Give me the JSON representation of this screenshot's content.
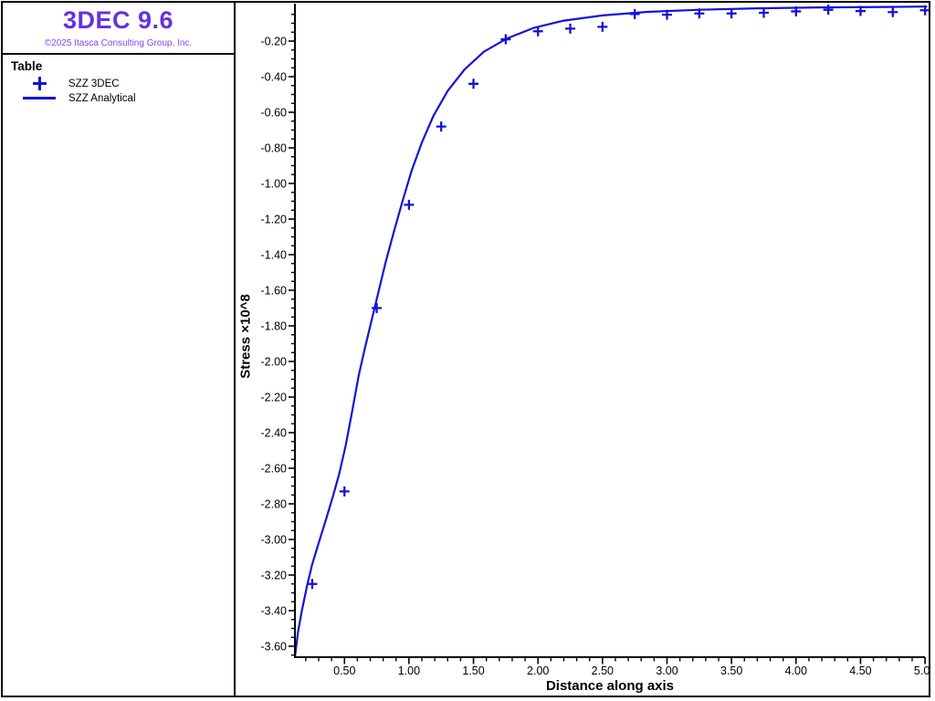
{
  "window": {
    "background": "#ffffff",
    "frame_color": "#000000"
  },
  "sidebar": {
    "title": "3DEC 9.6",
    "title_color": "#6531e1",
    "copyright": "©2025 Itasca Consulting Group, Inc.",
    "copyright_color": "#7b48ec",
    "legend": {
      "heading": "Table",
      "items": [
        {
          "icon": "plus-marker",
          "label": "SZZ 3DEC"
        },
        {
          "icon": "line-marker",
          "label": "SZZ Analytical"
        }
      ]
    }
  },
  "chart_data": {
    "type": "line",
    "title": "",
    "xlabel": "Distance along axis",
    "ylabel": "Stress ×10^8",
    "xlim": [
      0.116,
      5.0
    ],
    "ylim": [
      -3.66,
      0.01
    ],
    "grid": false,
    "legend_position": "sidebar-top-left",
    "axis_color": "#000000",
    "x_major_ticks": [
      0.5,
      1.0,
      1.5,
      2.0,
      2.5,
      3.0,
      3.5,
      4.0,
      4.5,
      5.0
    ],
    "y_major_ticks": [
      -0.2,
      -0.4,
      -0.6,
      -0.8,
      -1.0,
      -1.2,
      -1.4,
      -1.6,
      -1.8,
      -2.0,
      -2.2,
      -2.4,
      -2.6,
      -2.8,
      -3.0,
      -3.2,
      -3.4,
      -3.6
    ],
    "x_minor_step": 0.1,
    "y_minor_step": 0.05,
    "tick_label_decimals": 2,
    "series": [
      {
        "name": "SZZ 3DEC",
        "type": "scatter",
        "marker": "plus",
        "color": "#1313d6",
        "x": [
          0.25,
          0.5,
          0.75,
          1.0,
          1.25,
          1.5,
          1.75,
          2.0,
          2.25,
          2.5,
          2.75,
          3.0,
          3.25,
          3.5,
          3.75,
          4.0,
          4.25,
          4.5,
          4.75,
          5.0
        ],
        "y": [
          -3.25,
          -2.73,
          -1.7,
          -1.12,
          -0.68,
          -0.44,
          -0.19,
          -0.145,
          -0.13,
          -0.12,
          -0.048,
          -0.052,
          -0.045,
          -0.045,
          -0.041,
          -0.033,
          -0.024,
          -0.031,
          -0.037,
          -0.027
        ]
      },
      {
        "name": "SZZ Analytical",
        "type": "line",
        "color": "#1313d6",
        "points": [
          [
            0.116,
            -3.66
          ],
          [
            0.14,
            -3.52
          ],
          [
            0.17,
            -3.4
          ],
          [
            0.21,
            -3.26
          ],
          [
            0.25,
            -3.14
          ],
          [
            0.3,
            -3.02
          ],
          [
            0.36,
            -2.88
          ],
          [
            0.41,
            -2.76
          ],
          [
            0.46,
            -2.63
          ],
          [
            0.51,
            -2.47
          ],
          [
            0.56,
            -2.28
          ],
          [
            0.61,
            -2.08
          ],
          [
            0.66,
            -1.92
          ],
          [
            0.71,
            -1.77
          ],
          [
            0.76,
            -1.62
          ],
          [
            0.82,
            -1.44
          ],
          [
            0.88,
            -1.28
          ],
          [
            0.95,
            -1.1
          ],
          [
            1.02,
            -0.93
          ],
          [
            1.1,
            -0.77
          ],
          [
            1.19,
            -0.62
          ],
          [
            1.3,
            -0.48
          ],
          [
            1.43,
            -0.36
          ],
          [
            1.58,
            -0.26
          ],
          [
            1.76,
            -0.185
          ],
          [
            1.97,
            -0.125
          ],
          [
            2.2,
            -0.085
          ],
          [
            2.5,
            -0.056
          ],
          [
            2.85,
            -0.036
          ],
          [
            3.25,
            -0.024
          ],
          [
            3.7,
            -0.016
          ],
          [
            4.2,
            -0.011
          ],
          [
            4.7,
            -0.008
          ],
          [
            5.01,
            -0.006
          ]
        ]
      }
    ]
  }
}
